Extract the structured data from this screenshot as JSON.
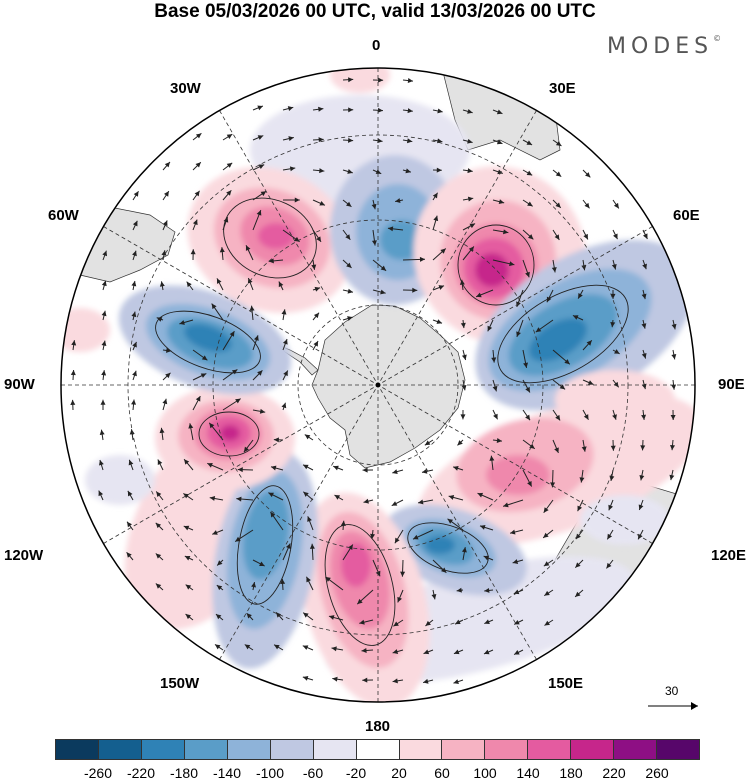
{
  "header": {
    "title": "Base 05/03/2026 00 UTC, valid 13/03/2026 00 UTC",
    "brand": "MODES",
    "brand_mark": "©"
  },
  "map": {
    "projection": "south-polar-stereographic",
    "longitude_labels": {
      "top": "0",
      "top_left": "30W",
      "top_right": "30E",
      "upper_left": "60W",
      "upper_right": "60E",
      "left": "90W",
      "right": "90E",
      "lower_left": "120W",
      "lower_right": "120E",
      "bottom_left": "150W",
      "bottom_right": "150E",
      "bottom": "180"
    },
    "anomaly_features": [
      {
        "sign": "positive",
        "longitude": "45W",
        "intensity": 180
      },
      {
        "sign": "negative",
        "longitude": "10E",
        "intensity": -140
      },
      {
        "sign": "positive",
        "longitude": "40E",
        "intensity": 220
      },
      {
        "sign": "negative",
        "longitude": "75E",
        "intensity": -180
      },
      {
        "sign": "positive",
        "longitude": "110E",
        "intensity": 100
      },
      {
        "sign": "negative",
        "longitude": "145E",
        "intensity": -180
      },
      {
        "sign": "positive",
        "longitude": "170W",
        "intensity": 180
      },
      {
        "sign": "negative",
        "longitude": "140W",
        "intensity": -140
      },
      {
        "sign": "positive",
        "longitude": "100W",
        "intensity": 220
      },
      {
        "sign": "negative",
        "longitude": "70W",
        "intensity": -180
      }
    ]
  },
  "vector_reference": {
    "value": "30"
  },
  "colorbar": {
    "ticks": [
      "-260",
      "-220",
      "-180",
      "-140",
      "-100",
      "-60",
      "-20",
      "20",
      "60",
      "100",
      "140",
      "180",
      "220",
      "260"
    ],
    "colors": [
      "#0b3a5e",
      "#145f8f",
      "#2f82b6",
      "#5a9dc8",
      "#8eb3d9",
      "#bfc8e2",
      "#e6e5f2",
      "#ffffff",
      "#fadadf",
      "#f6b3c3",
      "#ef88ac",
      "#e45ba0",
      "#c6268b",
      "#8e0f84",
      "#57066a"
    ]
  }
}
